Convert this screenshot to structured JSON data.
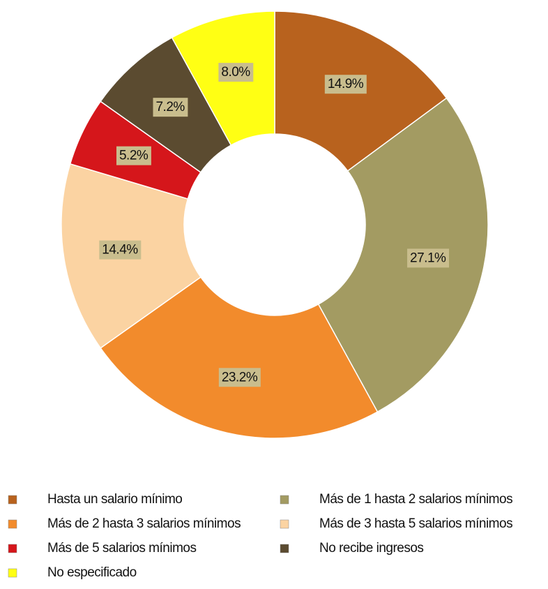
{
  "chart_data": {
    "type": "donut",
    "categories": [
      "Hasta un salario mínimo",
      "Más de 1 hasta 2 salarios mínimos",
      "Más de 2 hasta 3 salarios mínimos",
      "Más de 3 hasta 5 salarios mínimos",
      "Más de 5 salarios mínimos",
      "No recibe ingresos",
      "No especificado"
    ],
    "values": [
      14.9,
      27.1,
      23.2,
      14.4,
      5.2,
      7.2,
      8.0
    ],
    "value_labels": [
      "14.9%",
      "27.1%",
      "23.2%",
      "14.4%",
      "5.2%",
      "7.2%",
      "8.0%"
    ],
    "colors": [
      "#b8621e",
      "#a39b62",
      "#f28b2c",
      "#fbd3a2",
      "#d5161b",
      "#5b4b30",
      "#ffff14"
    ],
    "legend": "bottom"
  }
}
